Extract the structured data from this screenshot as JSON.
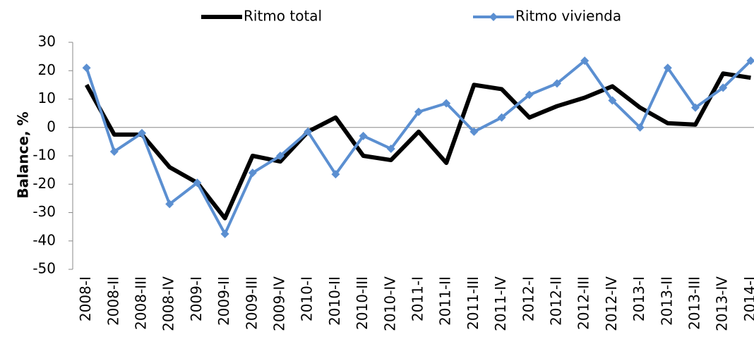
{
  "chart_data": {
    "type": "line",
    "y_label": "Balance, %",
    "categories": [
      "2008-I",
      "2008-II",
      "2008-III",
      "2008-IV",
      "2009-I",
      "2009-II",
      "2009-III",
      "2009-IV",
      "2010-I",
      "2010-II",
      "2010-III",
      "2010-IV",
      "2011-I",
      "2011-II",
      "2011-III",
      "2011-IV",
      "2012-I",
      "2012-II",
      "2012-III",
      "2012-IV",
      "2013-I",
      "2013-II",
      "2013-III",
      "2013-IV",
      "2014-I"
    ],
    "series": [
      {
        "name": "Ritmo total",
        "color": "#000000",
        "marker": "none",
        "values": [
          15,
          -2.5,
          -2.5,
          -14,
          -19.5,
          -32,
          -10,
          -12,
          -1.5,
          3.5,
          -10,
          -11.5,
          -1.5,
          -12.5,
          15,
          13.5,
          3.5,
          7.5,
          10.5,
          14.5,
          7,
          1.5,
          1,
          19,
          17.5
        ]
      },
      {
        "name": "Ritmo vivienda",
        "color": "#5b8fd1",
        "marker": "diamond",
        "values": [
          21,
          -8.5,
          -2,
          -27,
          -19.5,
          -37.5,
          -16,
          -10,
          -1.5,
          -16.5,
          -3,
          -7.5,
          5.5,
          8.5,
          -1.5,
          3.5,
          11.5,
          15.5,
          23.5,
          9.5,
          0,
          21,
          7,
          14,
          23.5
        ]
      }
    ],
    "ylim": [
      -50,
      30
    ],
    "yticks": [
      -50,
      -40,
      -30,
      -20,
      -10,
      0,
      10,
      20,
      30
    ],
    "grid": false,
    "legend": "top"
  }
}
